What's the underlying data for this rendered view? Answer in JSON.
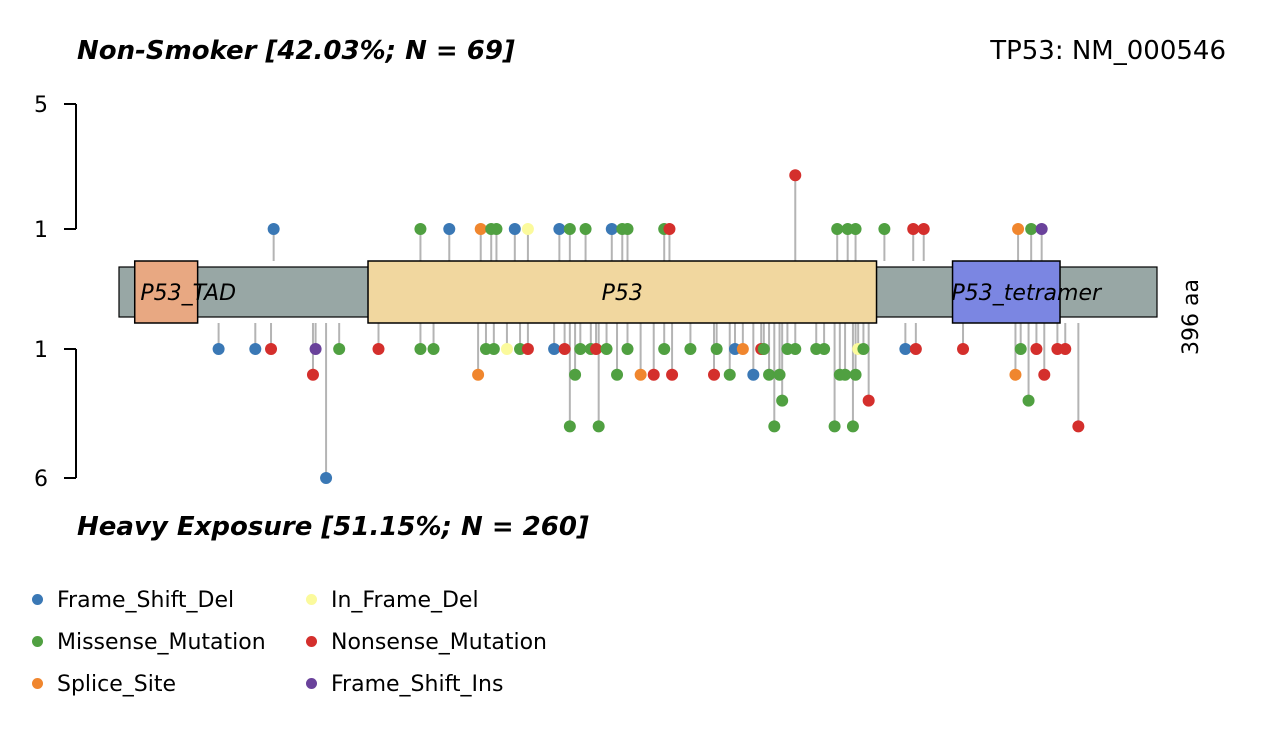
{
  "header": {
    "top_title": "Non-Smoker [42.03%; N = 69]",
    "bottom_title": "Heavy Exposure [51.15%; N = 260]",
    "gene_label": "TP53: NM_000546",
    "protein_length_label": "396 aa"
  },
  "legend": [
    {
      "label": "Frame_Shift_Del",
      "color": "#3a78b5"
    },
    {
      "label": "In_Frame_Del",
      "color": "#fbfa9c"
    },
    {
      "label": "Missense_Mutation",
      "color": "#50a041"
    },
    {
      "label": "Nonsense_Mutation",
      "color": "#d42f2c"
    },
    {
      "label": "Splice_Site",
      "color": "#f0862e"
    },
    {
      "label": "Frame_Shift_Ins",
      "color": "#6a429b"
    }
  ],
  "chart_data": {
    "type": "lollipop",
    "protein_length": 396,
    "backbone_color": "#98a7a5",
    "domains": [
      {
        "name": "P53_TAD",
        "start": 6,
        "end": 30,
        "color": "#e8a882"
      },
      {
        "name": "P53",
        "start": 95,
        "end": 289,
        "color": "#f1d79f"
      },
      {
        "name": "P53_tetramer",
        "start": 318,
        "end": 359,
        "color": "#7b86e2"
      }
    ],
    "top_axis": {
      "ticks": [
        "1",
        "5"
      ]
    },
    "bottom_axis": {
      "ticks": [
        "1",
        "6"
      ]
    },
    "top_mutations": [
      {
        "pos": 59,
        "count": 1,
        "type": "Frame_Shift_Del"
      },
      {
        "pos": 115,
        "count": 1,
        "type": "Missense_Mutation"
      },
      {
        "pos": 126,
        "count": 1,
        "type": "Frame_Shift_Del"
      },
      {
        "pos": 138,
        "count": 1,
        "type": "Splice_Site"
      },
      {
        "pos": 142,
        "count": 1,
        "type": "Missense_Mutation"
      },
      {
        "pos": 144,
        "count": 1,
        "type": "Missense_Mutation"
      },
      {
        "pos": 151,
        "count": 1,
        "type": "Frame_Shift_Del"
      },
      {
        "pos": 156,
        "count": 1,
        "type": "In_Frame_Del"
      },
      {
        "pos": 168,
        "count": 1,
        "type": "Frame_Shift_Del"
      },
      {
        "pos": 172,
        "count": 1,
        "type": "Missense_Mutation"
      },
      {
        "pos": 178,
        "count": 1,
        "type": "Missense_Mutation"
      },
      {
        "pos": 188,
        "count": 1,
        "type": "Frame_Shift_Del"
      },
      {
        "pos": 192,
        "count": 1,
        "type": "Missense_Mutation"
      },
      {
        "pos": 194,
        "count": 1,
        "type": "Missense_Mutation"
      },
      {
        "pos": 208,
        "count": 1,
        "type": "Missense_Mutation"
      },
      {
        "pos": 210,
        "count": 1,
        "type": "Nonsense_Mutation"
      },
      {
        "pos": 274,
        "count": 1,
        "type": "Missense_Mutation"
      },
      {
        "pos": 278,
        "count": 1,
        "type": "Missense_Mutation"
      },
      {
        "pos": 281,
        "count": 1,
        "type": "Missense_Mutation"
      },
      {
        "pos": 292,
        "count": 1,
        "type": "Missense_Mutation"
      },
      {
        "pos": 303,
        "count": 1,
        "type": "Nonsense_Mutation"
      },
      {
        "pos": 307,
        "count": 1,
        "type": "Nonsense_Mutation"
      },
      {
        "pos": 343,
        "count": 1,
        "type": "Splice_Site"
      },
      {
        "pos": 348,
        "count": 1,
        "type": "Missense_Mutation"
      },
      {
        "pos": 352,
        "count": 1,
        "type": "Frame_Shift_Ins"
      },
      {
        "pos": 258,
        "count": 3,
        "type": "Nonsense_Mutation"
      }
    ],
    "bottom_mutations": [
      {
        "pos": 38,
        "count": 1,
        "type": "Frame_Shift_Del"
      },
      {
        "pos": 52,
        "count": 1,
        "type": "Frame_Shift_Del"
      },
      {
        "pos": 58,
        "count": 1,
        "type": "Nonsense_Mutation"
      },
      {
        "pos": 74,
        "count": 2,
        "type": "Nonsense_Mutation"
      },
      {
        "pos": 75,
        "count": 1,
        "type": "Frame_Shift_Ins"
      },
      {
        "pos": 79,
        "count": 6,
        "type": "Frame_Shift_Del"
      },
      {
        "pos": 84,
        "count": 1,
        "type": "Missense_Mutation"
      },
      {
        "pos": 99,
        "count": 1,
        "type": "Nonsense_Mutation"
      },
      {
        "pos": 115,
        "count": 1,
        "type": "Missense_Mutation"
      },
      {
        "pos": 120,
        "count": 1,
        "type": "Missense_Mutation"
      },
      {
        "pos": 137,
        "count": 2,
        "type": "Splice_Site"
      },
      {
        "pos": 140,
        "count": 1,
        "type": "Missense_Mutation"
      },
      {
        "pos": 143,
        "count": 1,
        "type": "Missense_Mutation"
      },
      {
        "pos": 148,
        "count": 1,
        "type": "In_Frame_Del"
      },
      {
        "pos": 153,
        "count": 1,
        "type": "Missense_Mutation"
      },
      {
        "pos": 156,
        "count": 1,
        "type": "Nonsense_Mutation"
      },
      {
        "pos": 166,
        "count": 1,
        "type": "Frame_Shift_Del"
      },
      {
        "pos": 170,
        "count": 1,
        "type": "Nonsense_Mutation"
      },
      {
        "pos": 172,
        "count": 4,
        "type": "Missense_Mutation"
      },
      {
        "pos": 174,
        "count": 2,
        "type": "Missense_Mutation"
      },
      {
        "pos": 176,
        "count": 1,
        "type": "Missense_Mutation"
      },
      {
        "pos": 180,
        "count": 1,
        "type": "Missense_Mutation"
      },
      {
        "pos": 182,
        "count": 1,
        "type": "Nonsense_Mutation"
      },
      {
        "pos": 183,
        "count": 4,
        "type": "Missense_Mutation"
      },
      {
        "pos": 186,
        "count": 1,
        "type": "Missense_Mutation"
      },
      {
        "pos": 190,
        "count": 2,
        "type": "Missense_Mutation"
      },
      {
        "pos": 194,
        "count": 1,
        "type": "Missense_Mutation"
      },
      {
        "pos": 199,
        "count": 2,
        "type": "Splice_Site"
      },
      {
        "pos": 204,
        "count": 2,
        "type": "Nonsense_Mutation"
      },
      {
        "pos": 208,
        "count": 1,
        "type": "Missense_Mutation"
      },
      {
        "pos": 211,
        "count": 2,
        "type": "Nonsense_Mutation"
      },
      {
        "pos": 218,
        "count": 1,
        "type": "Missense_Mutation"
      },
      {
        "pos": 227,
        "count": 2,
        "type": "Nonsense_Mutation"
      },
      {
        "pos": 228,
        "count": 1,
        "type": "Missense_Mutation"
      },
      {
        "pos": 233,
        "count": 2,
        "type": "Missense_Mutation"
      },
      {
        "pos": 235,
        "count": 1,
        "type": "Frame_Shift_Del"
      },
      {
        "pos": 238,
        "count": 1,
        "type": "Splice_Site"
      },
      {
        "pos": 242,
        "count": 2,
        "type": "Frame_Shift_Del"
      },
      {
        "pos": 245,
        "count": 1,
        "type": "Nonsense_Mutation"
      },
      {
        "pos": 246,
        "count": 1,
        "type": "Missense_Mutation"
      },
      {
        "pos": 248,
        "count": 2,
        "type": "Missense_Mutation"
      },
      {
        "pos": 250,
        "count": 4,
        "type": "Missense_Mutation"
      },
      {
        "pos": 252,
        "count": 2,
        "type": "Missense_Mutation"
      },
      {
        "pos": 253,
        "count": 3,
        "type": "Missense_Mutation"
      },
      {
        "pos": 255,
        "count": 1,
        "type": "Missense_Mutation"
      },
      {
        "pos": 258,
        "count": 1,
        "type": "Missense_Mutation"
      },
      {
        "pos": 266,
        "count": 1,
        "type": "Missense_Mutation"
      },
      {
        "pos": 269,
        "count": 1,
        "type": "Missense_Mutation"
      },
      {
        "pos": 273,
        "count": 4,
        "type": "Missense_Mutation"
      },
      {
        "pos": 275,
        "count": 2,
        "type": "Missense_Mutation"
      },
      {
        "pos": 277,
        "count": 2,
        "type": "Missense_Mutation"
      },
      {
        "pos": 280,
        "count": 4,
        "type": "Missense_Mutation"
      },
      {
        "pos": 281,
        "count": 2,
        "type": "Missense_Mutation"
      },
      {
        "pos": 282,
        "count": 1,
        "type": "In_Frame_Del"
      },
      {
        "pos": 284,
        "count": 1,
        "type": "Missense_Mutation"
      },
      {
        "pos": 286,
        "count": 3,
        "type": "Nonsense_Mutation"
      },
      {
        "pos": 300,
        "count": 1,
        "type": "Frame_Shift_Del"
      },
      {
        "pos": 304,
        "count": 1,
        "type": "Nonsense_Mutation"
      },
      {
        "pos": 322,
        "count": 1,
        "type": "Nonsense_Mutation"
      },
      {
        "pos": 342,
        "count": 2,
        "type": "Splice_Site"
      },
      {
        "pos": 344,
        "count": 1,
        "type": "Missense_Mutation"
      },
      {
        "pos": 347,
        "count": 3,
        "type": "Missense_Mutation"
      },
      {
        "pos": 350,
        "count": 1,
        "type": "Nonsense_Mutation"
      },
      {
        "pos": 353,
        "count": 2,
        "type": "Nonsense_Mutation"
      },
      {
        "pos": 358,
        "count": 1,
        "type": "Nonsense_Mutation"
      },
      {
        "pos": 361,
        "count": 1,
        "type": "Nonsense_Mutation"
      },
      {
        "pos": 366,
        "count": 4,
        "type": "Nonsense_Mutation"
      }
    ]
  }
}
